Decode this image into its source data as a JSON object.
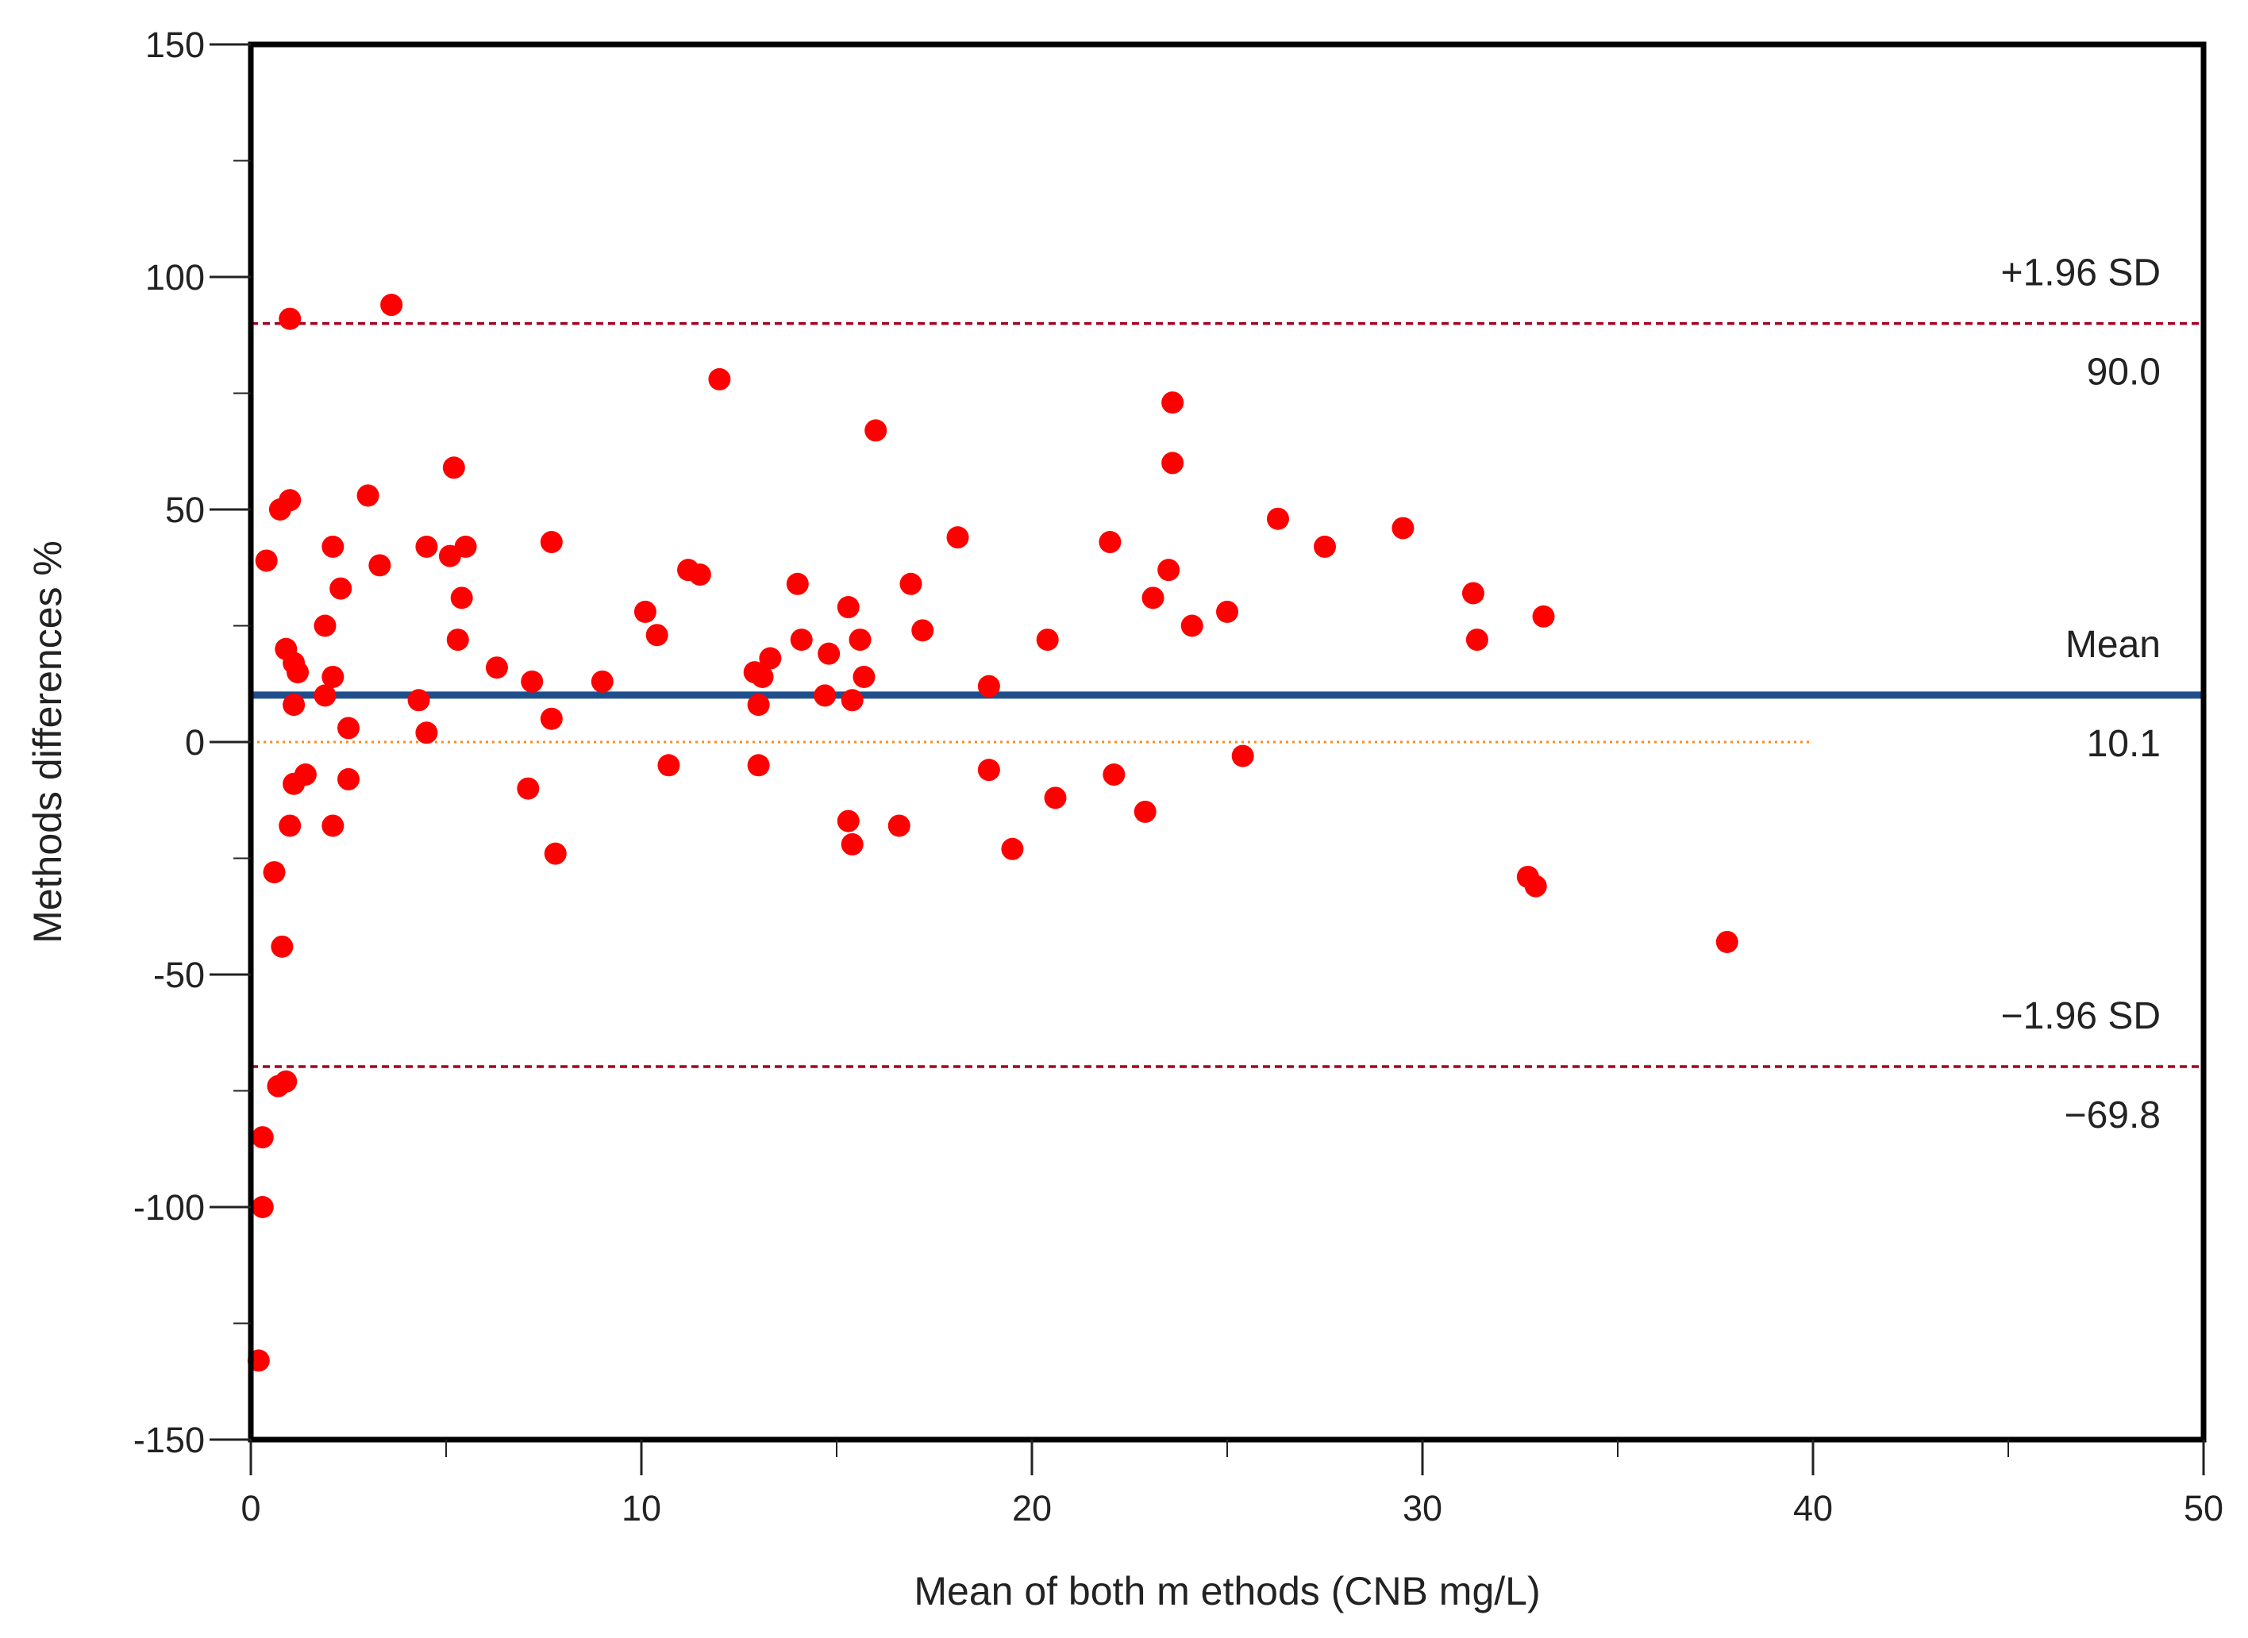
{
  "chart_data": {
    "type": "scatter",
    "title": "",
    "xlabel": "Mean of both m ethods (CNB mg/L)",
    "ylabel": "Methods differences %",
    "xlim": [
      0,
      50
    ],
    "ylim": [
      -150,
      150
    ],
    "xticks": [
      "0",
      "10",
      "20",
      "30",
      "40",
      "50"
    ],
    "yticks": [
      "150",
      "100",
      "50",
      "0",
      "-50",
      "-100",
      "-150"
    ],
    "grid": false,
    "legend": "none",
    "marker_color": "#ff0000",
    "reference_lines": {
      "upper_loa": {
        "label": "+1.96 SD",
        "value_label": "90.0",
        "value": 90.0,
        "color": "#a50021",
        "style": "dashed"
      },
      "mean": {
        "label": "Mean",
        "value_label": "10.1",
        "value": 10.1,
        "color": "#1f4e8c",
        "style": "solid"
      },
      "lower_loa": {
        "label": "−1.96 SD",
        "value_label": "−69.8",
        "value": -69.8,
        "color": "#a50021",
        "style": "dashed"
      },
      "zero": {
        "value": 0,
        "x_range": [
          0,
          40
        ],
        "color": "#ff8c1a",
        "style": "dotted"
      }
    },
    "points": [
      [
        1.0,
        91
      ],
      [
        3.6,
        94
      ],
      [
        12.0,
        78
      ],
      [
        23.6,
        73
      ],
      [
        16.0,
        67
      ],
      [
        5.2,
        59
      ],
      [
        23.6,
        60
      ],
      [
        3.0,
        53
      ],
      [
        1.0,
        52
      ],
      [
        0.75,
        50
      ],
      [
        26.3,
        48
      ],
      [
        29.5,
        46
      ],
      [
        18.1,
        44
      ],
      [
        22.0,
        43
      ],
      [
        7.7,
        43
      ],
      [
        2.1,
        42
      ],
      [
        4.5,
        42
      ],
      [
        5.5,
        42
      ],
      [
        5.1,
        40
      ],
      [
        27.5,
        42
      ],
      [
        0.4,
        39
      ],
      [
        3.3,
        38
      ],
      [
        11.2,
        37
      ],
      [
        11.5,
        36
      ],
      [
        23.5,
        37
      ],
      [
        14.0,
        34
      ],
      [
        16.9,
        34
      ],
      [
        2.3,
        33
      ],
      [
        5.4,
        31
      ],
      [
        23.1,
        31
      ],
      [
        31.3,
        32
      ],
      [
        10.1,
        28
      ],
      [
        15.3,
        29
      ],
      [
        25.0,
        28
      ],
      [
        33.1,
        27
      ],
      [
        1.9,
        25
      ],
      [
        24.1,
        25
      ],
      [
        10.4,
        23
      ],
      [
        17.2,
        24
      ],
      [
        5.3,
        22
      ],
      [
        14.1,
        22
      ],
      [
        15.6,
        22
      ],
      [
        20.4,
        22
      ],
      [
        31.4,
        22
      ],
      [
        0.9,
        20
      ],
      [
        1.1,
        17
      ],
      [
        14.8,
        19
      ],
      [
        13.3,
        18
      ],
      [
        1.2,
        15
      ],
      [
        6.3,
        16
      ],
      [
        12.9,
        15
      ],
      [
        13.1,
        14
      ],
      [
        15.7,
        14
      ],
      [
        2.1,
        14
      ],
      [
        7.2,
        13
      ],
      [
        9.0,
        13
      ],
      [
        18.9,
        12
      ],
      [
        1.9,
        10
      ],
      [
        4.3,
        9
      ],
      [
        14.7,
        10
      ],
      [
        1.1,
        8
      ],
      [
        13.0,
        8
      ],
      [
        15.4,
        9
      ],
      [
        7.7,
        5
      ],
      [
        2.5,
        3
      ],
      [
        4.5,
        2
      ],
      [
        10.7,
        -5
      ],
      [
        13.0,
        -5
      ],
      [
        18.9,
        -6
      ],
      [
        25.4,
        -3
      ],
      [
        1.4,
        -7
      ],
      [
        1.1,
        -9
      ],
      [
        2.5,
        -8
      ],
      [
        7.1,
        -10
      ],
      [
        22.1,
        -7
      ],
      [
        20.6,
        -12
      ],
      [
        22.9,
        -15
      ],
      [
        15.3,
        -17
      ],
      [
        16.6,
        -18
      ],
      [
        1.0,
        -18
      ],
      [
        2.1,
        -18
      ],
      [
        15.4,
        -22
      ],
      [
        19.5,
        -23
      ],
      [
        7.8,
        -24
      ],
      [
        0.6,
        -28
      ],
      [
        32.7,
        -29
      ],
      [
        32.9,
        -31
      ],
      [
        0.8,
        -44
      ],
      [
        37.8,
        -43
      ],
      [
        0.7,
        -74
      ],
      [
        0.9,
        -73
      ],
      [
        0.3,
        -85
      ],
      [
        0.3,
        -100
      ],
      [
        0.2,
        -133
      ]
    ]
  }
}
